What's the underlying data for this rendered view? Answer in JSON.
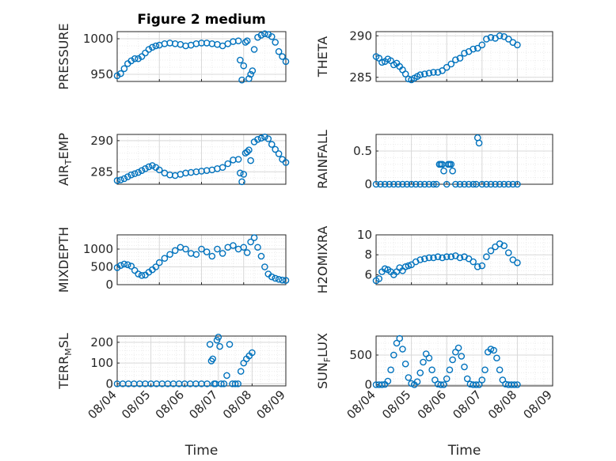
{
  "figure": {
    "title": "Figure 2 medium"
  },
  "colors": {
    "marker": "#0072bd",
    "axis": "#262626",
    "grid": "#d9d9d9",
    "minor_grid": "#ececec"
  },
  "chart_data": [
    {
      "type": "scatter",
      "ylabel": "PRESSURE",
      "xlabel": "",
      "title": "Figure 2 medium",
      "ylim": [
        940,
        1010
      ],
      "yticks": [
        950,
        1000
      ],
      "xlim": [
        "08/04",
        "08/08"
      ],
      "show_xticklabels": false,
      "x": [
        "08/04 00:00",
        "08/04 02:00",
        "08/04 04:00",
        "08/04 06:00",
        "08/04 08:00",
        "08/04 10:00",
        "08/04 12:00",
        "08/04 14:00",
        "08/04 16:00",
        "08/04 18:00",
        "08/04 20:00",
        "08/04 22:00",
        "08/05 00:00",
        "08/05 03:00",
        "08/05 06:00",
        "08/05 09:00",
        "08/05 12:00",
        "08/05 15:00",
        "08/05 18:00",
        "08/05 21:00",
        "08/06 00:00",
        "08/06 03:00",
        "08/06 06:00",
        "08/06 09:00",
        "08/06 12:00",
        "08/06 15:00",
        "08/06 18:00",
        "08/06 21:00",
        "08/06 22:00",
        "08/06 23:00",
        "08/07 00:00",
        "08/07 01:00",
        "08/07 02:00",
        "08/07 03:00",
        "08/07 04:00",
        "08/07 05:00",
        "08/07 06:00",
        "08/07 08:00",
        "08/07 10:00",
        "08/07 12:00",
        "08/07 14:00",
        "08/07 16:00",
        "08/07 18:00",
        "08/07 20:00",
        "08/07 22:00",
        "08/08 00:00"
      ],
      "y": [
        948,
        951,
        958,
        965,
        969,
        972,
        972,
        975,
        980,
        985,
        988,
        990,
        991,
        993,
        994,
        993,
        992,
        990,
        991,
        993,
        994,
        994,
        993,
        992,
        990,
        993,
        996,
        997,
        970,
        942,
        962,
        995,
        997,
        944,
        950,
        955,
        985,
        1002,
        1005,
        1007,
        1006,
        1003,
        995,
        982,
        975,
        968
      ]
    },
    {
      "type": "scatter",
      "ylabel": "THETA",
      "xlabel": "",
      "ylim": [
        284.5,
        290.5
      ],
      "yticks": [
        285,
        290
      ],
      "xlim": [
        "08/04",
        "08/09"
      ],
      "show_xticklabels": false,
      "x": [
        "08/04 00:00",
        "08/04 02:00",
        "08/04 04:00",
        "08/04 06:00",
        "08/04 08:00",
        "08/04 10:00",
        "08/04 12:00",
        "08/04 14:00",
        "08/04 16:00",
        "08/04 18:00",
        "08/04 20:00",
        "08/04 22:00",
        "08/05 00:00",
        "08/05 02:00",
        "08/05 04:00",
        "08/05 06:00",
        "08/05 09:00",
        "08/05 12:00",
        "08/05 15:00",
        "08/05 18:00",
        "08/05 21:00",
        "08/06 00:00",
        "08/06 03:00",
        "08/06 06:00",
        "08/06 09:00",
        "08/06 12:00",
        "08/06 15:00",
        "08/06 18:00",
        "08/06 21:00",
        "08/07 00:00",
        "08/07 03:00",
        "08/07 06:00",
        "08/07 09:00",
        "08/07 12:00",
        "08/07 15:00",
        "08/07 18:00",
        "08/07 21:00",
        "08/08 00:00"
      ],
      "y": [
        287.5,
        287.3,
        286.8,
        286.9,
        287.2,
        287.0,
        286.5,
        286.7,
        286.3,
        285.9,
        285.4,
        284.8,
        284.7,
        284.9,
        285.1,
        285.3,
        285.4,
        285.5,
        285.6,
        285.6,
        285.8,
        286.2,
        286.6,
        287.1,
        287.3,
        287.9,
        288.1,
        288.4,
        288.5,
        288.9,
        289.6,
        289.8,
        289.7,
        290.0,
        289.9,
        289.6,
        289.2,
        288.9
      ]
    },
    {
      "type": "scatter",
      "ylabel": "AIR_TEMP",
      "xlabel": "",
      "ylim": [
        283,
        291
      ],
      "yticks": [
        285,
        290
      ],
      "xlim": [
        "08/04",
        "08/08"
      ],
      "show_xticklabels": false,
      "x": [
        "08/04 00:00",
        "08/04 02:00",
        "08/04 04:00",
        "08/04 06:00",
        "08/04 08:00",
        "08/04 10:00",
        "08/04 12:00",
        "08/04 14:00",
        "08/04 16:00",
        "08/04 18:00",
        "08/04 20:00",
        "08/04 22:00",
        "08/05 00:00",
        "08/05 03:00",
        "08/05 06:00",
        "08/05 09:00",
        "08/05 12:00",
        "08/05 15:00",
        "08/05 18:00",
        "08/05 21:00",
        "08/06 00:00",
        "08/06 03:00",
        "08/06 06:00",
        "08/06 09:00",
        "08/06 12:00",
        "08/06 15:00",
        "08/06 18:00",
        "08/06 21:00",
        "08/06 22:00",
        "08/06 23:00",
        "08/07 00:00",
        "08/07 01:00",
        "08/07 02:00",
        "08/07 03:00",
        "08/07 04:00",
        "08/07 06:00",
        "08/07 08:00",
        "08/07 10:00",
        "08/07 12:00",
        "08/07 14:00",
        "08/07 16:00",
        "08/07 18:00",
        "08/07 20:00",
        "08/07 22:00",
        "08/08 00:00"
      ],
      "y": [
        283.6,
        283.7,
        283.9,
        284.2,
        284.5,
        284.7,
        284.9,
        285.2,
        285.5,
        285.8,
        286.0,
        285.7,
        285.3,
        284.8,
        284.5,
        284.4,
        284.6,
        284.8,
        284.9,
        285.0,
        285.1,
        285.2,
        285.3,
        285.5,
        285.7,
        286.3,
        286.9,
        287.0,
        284.8,
        283.4,
        284.6,
        288.0,
        288.2,
        288.5,
        286.8,
        289.8,
        290.2,
        290.4,
        290.6,
        290.3,
        289.4,
        288.6,
        287.9,
        287.0,
        286.5
      ]
    },
    {
      "type": "scatter",
      "ylabel": "RAINFALL",
      "xlabel": "",
      "ylim": [
        0,
        0.75
      ],
      "yticks": [
        0,
        0.5
      ],
      "xlim": [
        "08/04",
        "08/09"
      ],
      "show_xticklabels": false,
      "x": [
        "08/04 00:00",
        "08/04 03:00",
        "08/04 06:00",
        "08/04 09:00",
        "08/04 12:00",
        "08/04 15:00",
        "08/04 18:00",
        "08/04 21:00",
        "08/05 00:00",
        "08/05 03:00",
        "08/05 06:00",
        "08/05 09:00",
        "08/05 12:00",
        "08/05 15:00",
        "08/05 17:00",
        "08/05 19:00",
        "08/05 20:00",
        "08/05 21:00",
        "08/05 22:00",
        "08/06 00:00",
        "08/06 01:00",
        "08/06 02:00",
        "08/06 03:00",
        "08/06 04:00",
        "08/06 06:00",
        "08/06 09:00",
        "08/06 12:00",
        "08/06 15:00",
        "08/06 18:00",
        "08/06 20:00",
        "08/06 21:00",
        "08/06 22:00",
        "08/07 00:00",
        "08/07 03:00",
        "08/07 06:00",
        "08/07 09:00",
        "08/07 12:00",
        "08/07 15:00",
        "08/07 18:00",
        "08/07 21:00",
        "08/08 00:00"
      ],
      "y": [
        0,
        0,
        0,
        0,
        0,
        0,
        0,
        0,
        0,
        0,
        0,
        0,
        0,
        0,
        0,
        0.3,
        0.3,
        0.3,
        0.2,
        0,
        0.3,
        0.3,
        0.3,
        0.2,
        0,
        0,
        0,
        0,
        0,
        0,
        0.7,
        0.62,
        0,
        0,
        0,
        0,
        0,
        0,
        0,
        0,
        0
      ]
    },
    {
      "type": "scatter",
      "ylabel": "MIXDEPTH",
      "xlabel": "",
      "ylim": [
        0,
        1400
      ],
      "yticks": [
        0,
        500,
        1000
      ],
      "xlim": [
        "08/04",
        "08/08"
      ],
      "show_xticklabels": false,
      "x": [
        "08/04 00:00",
        "08/04 02:00",
        "08/04 04:00",
        "08/04 06:00",
        "08/04 08:00",
        "08/04 10:00",
        "08/04 12:00",
        "08/04 14:00",
        "08/04 16:00",
        "08/04 18:00",
        "08/04 20:00",
        "08/04 22:00",
        "08/05 00:00",
        "08/05 03:00",
        "08/05 06:00",
        "08/05 09:00",
        "08/05 12:00",
        "08/05 15:00",
        "08/05 18:00",
        "08/05 21:00",
        "08/06 00:00",
        "08/06 03:00",
        "08/06 06:00",
        "08/06 09:00",
        "08/06 12:00",
        "08/06 15:00",
        "08/06 18:00",
        "08/06 21:00",
        "08/07 00:00",
        "08/07 02:00",
        "08/07 04:00",
        "08/07 06:00",
        "08/07 08:00",
        "08/07 10:00",
        "08/07 12:00",
        "08/07 14:00",
        "08/07 16:00",
        "08/07 18:00",
        "08/07 20:00",
        "08/07 22:00",
        "08/08 00:00"
      ],
      "y": [
        480,
        540,
        580,
        560,
        520,
        400,
        300,
        260,
        270,
        350,
        420,
        500,
        620,
        740,
        850,
        960,
        1050,
        1000,
        880,
        850,
        1000,
        920,
        800,
        1000,
        880,
        1050,
        1100,
        1000,
        1050,
        900,
        1200,
        1320,
        1050,
        800,
        500,
        300,
        220,
        180,
        150,
        130,
        120
      ]
    },
    {
      "type": "scatter",
      "ylabel": "H2OMIXRA",
      "xlabel": "",
      "ylim": [
        5,
        10
      ],
      "yticks": [
        6,
        8,
        10
      ],
      "xlim": [
        "08/04",
        "08/09"
      ],
      "show_xticklabels": false,
      "x": [
        "08/04 00:00",
        "08/04 02:00",
        "08/04 04:00",
        "08/04 06:00",
        "08/04 08:00",
        "08/04 10:00",
        "08/04 12:00",
        "08/04 14:00",
        "08/04 16:00",
        "08/04 18:00",
        "08/04 20:00",
        "08/04 22:00",
        "08/05 00:00",
        "08/05 03:00",
        "08/05 06:00",
        "08/05 09:00",
        "08/05 12:00",
        "08/05 15:00",
        "08/05 18:00",
        "08/05 21:00",
        "08/06 00:00",
        "08/06 03:00",
        "08/06 06:00",
        "08/06 09:00",
        "08/06 12:00",
        "08/06 15:00",
        "08/06 18:00",
        "08/06 21:00",
        "08/07 00:00",
        "08/07 03:00",
        "08/07 06:00",
        "08/07 09:00",
        "08/07 12:00",
        "08/07 15:00",
        "08/07 18:00",
        "08/07 21:00",
        "08/08 00:00"
      ],
      "y": [
        5.4,
        5.6,
        6.3,
        6.6,
        6.5,
        6.3,
        6.0,
        6.3,
        6.7,
        6.4,
        6.8,
        6.9,
        7.0,
        7.3,
        7.5,
        7.6,
        7.7,
        7.7,
        7.8,
        7.7,
        7.8,
        7.8,
        7.9,
        7.7,
        7.8,
        7.6,
        7.3,
        6.8,
        6.9,
        7.8,
        8.4,
        8.8,
        9.1,
        8.9,
        8.2,
        7.5,
        7.2
      ]
    },
    {
      "type": "scatter",
      "ylabel": "TERR_MSL",
      "xlabel": "Time",
      "ylim": [
        -10,
        230
      ],
      "yticks": [
        0,
        100,
        200
      ],
      "xlim": [
        "08/04",
        "08/09"
      ],
      "xticks": [
        "08/04",
        "08/05",
        "08/06",
        "08/07",
        "08/08",
        "08/09"
      ],
      "x": [
        "08/04 00:00",
        "08/04 04:00",
        "08/04 08:00",
        "08/04 12:00",
        "08/04 16:00",
        "08/04 20:00",
        "08/05 00:00",
        "08/05 04:00",
        "08/05 08:00",
        "08/05 12:00",
        "08/05 16:00",
        "08/05 20:00",
        "08/06 00:00",
        "08/06 04:00",
        "08/06 08:00",
        "08/06 12:00",
        "08/06 16:00",
        "08/06 18:00",
        "08/06 19:00",
        "08/06 20:00",
        "08/06 21:00",
        "08/06 22:00",
        "08/06 23:00",
        "08/07 00:00",
        "08/07 01:00",
        "08/07 02:00",
        "08/07 04:00",
        "08/07 06:00",
        "08/07 08:00",
        "08/07 10:00",
        "08/07 12:00",
        "08/07 14:00",
        "08/07 16:00",
        "08/07 18:00",
        "08/07 20:00",
        "08/07 22:00",
        "08/08 00:00"
      ],
      "y": [
        0,
        0,
        0,
        0,
        0,
        0,
        0,
        0,
        0,
        0,
        0,
        0,
        0,
        0,
        0,
        0,
        0,
        190,
        110,
        120,
        0,
        0,
        210,
        225,
        180,
        0,
        0,
        40,
        190,
        0,
        0,
        0,
        60,
        100,
        120,
        135,
        150
      ]
    },
    {
      "type": "scatter",
      "ylabel": "SUN_FLUX",
      "xlabel": "Time",
      "ylim": [
        -20,
        820
      ],
      "yticks": [
        0,
        500
      ],
      "xlim": [
        "08/04",
        "08/09"
      ],
      "xticks": [
        "08/04",
        "08/05",
        "08/06",
        "08/07",
        "08/08",
        "08/09"
      ],
      "x": [
        "08/04 00:00",
        "08/04 02:00",
        "08/04 04:00",
        "08/04 06:00",
        "08/04 08:00",
        "08/04 10:00",
        "08/04 12:00",
        "08/04 14:00",
        "08/04 16:00",
        "08/04 18:00",
        "08/04 20:00",
        "08/04 22:00",
        "08/05 00:00",
        "08/05 02:00",
        "08/05 04:00",
        "08/05 06:00",
        "08/05 08:00",
        "08/05 10:00",
        "08/05 12:00",
        "08/05 14:00",
        "08/05 16:00",
        "08/05 18:00",
        "08/05 20:00",
        "08/05 22:00",
        "08/06 00:00",
        "08/06 02:00",
        "08/06 04:00",
        "08/06 06:00",
        "08/06 08:00",
        "08/06 10:00",
        "08/06 12:00",
        "08/06 14:00",
        "08/06 16:00",
        "08/06 18:00",
        "08/06 20:00",
        "08/06 22:00",
        "08/07 00:00",
        "08/07 02:00",
        "08/07 04:00",
        "08/07 06:00",
        "08/07 08:00",
        "08/07 10:00",
        "08/07 12:00",
        "08/07 14:00",
        "08/07 16:00",
        "08/07 18:00",
        "08/07 20:00",
        "08/07 22:00",
        "08/08 00:00"
      ],
      "y": [
        0,
        0,
        0,
        5,
        60,
        250,
        500,
        700,
        780,
        600,
        350,
        120,
        20,
        0,
        50,
        200,
        380,
        520,
        450,
        250,
        80,
        10,
        0,
        0,
        100,
        250,
        420,
        550,
        620,
        480,
        300,
        100,
        10,
        0,
        0,
        0,
        80,
        250,
        550,
        600,
        580,
        450,
        250,
        80,
        10,
        0,
        0,
        0,
        0
      ]
    }
  ]
}
